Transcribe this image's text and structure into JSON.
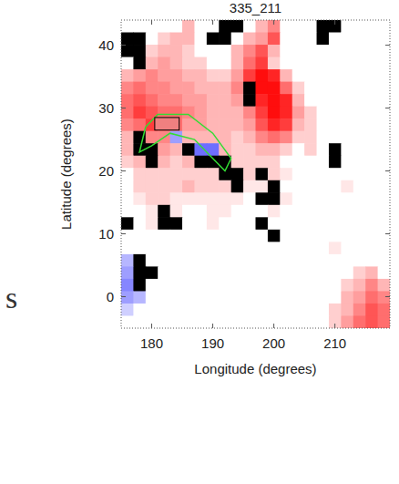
{
  "chart_data": {
    "type": "heatmap",
    "title": "335_211",
    "x_label": "Longitude (degrees)",
    "y_label": "Latitude (degrees)",
    "xlim": [
      175,
      219
    ],
    "ylim": [
      -5,
      44
    ],
    "xticks": [
      180,
      190,
      200,
      210
    ],
    "yticks": [
      0,
      10,
      20,
      30,
      40
    ],
    "zlim": [
      -1,
      1
    ],
    "values": [
      [
        0,
        0,
        0,
        0,
        0,
        0.3,
        0,
        0,
        null,
        null,
        0,
        0.3,
        0.5,
        0,
        0,
        0,
        null,
        null,
        0,
        0,
        0,
        0
      ],
      [
        null,
        null,
        0,
        0.2,
        0.3,
        0.3,
        0,
        null,
        null,
        0,
        0.3,
        0.4,
        0.7,
        0,
        0,
        0,
        null,
        0,
        0,
        0,
        0,
        0
      ],
      [
        null,
        null,
        0.2,
        0.3,
        0.3,
        0.2,
        0,
        0,
        0,
        0.3,
        0.5,
        0.7,
        0.3,
        0,
        0,
        0,
        0,
        0,
        0,
        0,
        0,
        0
      ],
      [
        0,
        null,
        0.3,
        0.4,
        0.3,
        0.2,
        0.2,
        0,
        0,
        0.3,
        0.6,
        0.8,
        0.2,
        0,
        0,
        0,
        0,
        0,
        0,
        0,
        0,
        0
      ],
      [
        0.3,
        0.4,
        0.5,
        0.4,
        0.4,
        0.3,
        0.3,
        0.2,
        0.2,
        0.4,
        0.8,
        1,
        0.9,
        0.3,
        0,
        0,
        0,
        0,
        0,
        0,
        0,
        0
      ],
      [
        0.5,
        0.6,
        0.5,
        0.5,
        0.4,
        0.4,
        0.3,
        0.3,
        0.3,
        0.5,
        null,
        1,
        1,
        0.6,
        0.2,
        0,
        0,
        0,
        0,
        0,
        0,
        0
      ],
      [
        0.6,
        0.7,
        0.6,
        0.5,
        0.5,
        0.4,
        0.4,
        0.3,
        0.3,
        0.4,
        null,
        0.9,
        1,
        0.9,
        0.3,
        0,
        0,
        0,
        0,
        0,
        0,
        0
      ],
      [
        0.6,
        0.8,
        0.7,
        0.6,
        0.6,
        0.5,
        0.4,
        0.3,
        0.3,
        0.3,
        0.5,
        0.8,
        1,
        0.9,
        0.4,
        0.2,
        0,
        0,
        0,
        0,
        0,
        0
      ],
      [
        0.5,
        0.6,
        0.8,
        0.7,
        0.6,
        0.4,
        0.4,
        0.3,
        0.3,
        0.3,
        0.4,
        0.7,
        0.9,
        0.8,
        0.3,
        0.2,
        0,
        0,
        0,
        0,
        0,
        0
      ],
      [
        0.3,
        null,
        0.5,
        0.5,
        -0.4,
        0.3,
        0.3,
        0.3,
        0.3,
        0.2,
        0.3,
        0.5,
        0.6,
        0.5,
        0.2,
        0.2,
        0,
        0,
        0,
        0,
        0,
        0
      ],
      [
        0.3,
        null,
        null,
        0.4,
        0.3,
        null,
        -0.6,
        -0.6,
        0.3,
        0.2,
        0.2,
        0.3,
        0.3,
        0.2,
        0,
        0.2,
        0,
        null,
        0,
        0,
        0,
        0
      ],
      [
        0.2,
        0.3,
        null,
        0.3,
        0.2,
        0.3,
        null,
        null,
        null,
        0.2,
        0.2,
        0.2,
        0.2,
        0,
        0,
        0,
        0,
        null,
        0,
        0,
        0,
        0
      ],
      [
        0,
        0.2,
        0.2,
        0.2,
        0.2,
        0.2,
        0.2,
        0.2,
        null,
        null,
        0.2,
        null,
        0.2,
        0.1,
        0,
        0,
        0,
        0,
        0,
        0,
        0,
        0
      ],
      [
        0,
        0.2,
        0.2,
        0.2,
        0.2,
        0.3,
        0.2,
        0.2,
        0.2,
        null,
        0.1,
        0.1,
        null,
        0,
        0,
        0,
        0,
        0,
        0.1,
        0,
        0,
        0
      ],
      [
        0,
        0.1,
        0.2,
        0.2,
        0.1,
        0.1,
        0.1,
        0.1,
        0.1,
        0.1,
        0,
        null,
        null,
        0.1,
        0,
        0,
        0,
        0,
        0,
        0,
        0,
        0
      ],
      [
        0,
        0,
        0.1,
        null,
        0.1,
        0,
        0,
        0.1,
        0.1,
        0,
        0,
        0,
        0.1,
        0,
        0,
        0,
        0,
        0,
        0,
        0,
        0,
        0
      ],
      [
        null,
        0,
        0.1,
        null,
        null,
        0,
        0,
        0.1,
        0,
        0,
        0,
        null,
        0,
        0,
        0,
        0,
        0,
        0,
        0,
        0,
        0,
        0
      ],
      [
        0,
        0,
        0,
        0,
        0,
        0,
        0,
        0,
        0,
        0,
        0,
        0,
        null,
        0,
        0,
        0,
        0,
        0,
        0,
        0,
        0,
        0
      ],
      [
        0,
        0,
        0,
        0,
        0,
        0,
        0,
        0,
        0,
        0,
        0,
        0,
        0,
        0,
        0,
        0,
        0,
        0.1,
        0,
        0,
        0,
        0
      ],
      [
        -0.3,
        null,
        0,
        0,
        0,
        0,
        0,
        0,
        0,
        0,
        0,
        0,
        0,
        0,
        0,
        0,
        0,
        0,
        0,
        0,
        0,
        0
      ],
      [
        -0.4,
        null,
        null,
        0,
        0,
        0,
        0,
        0,
        0,
        0,
        0,
        0,
        0,
        0,
        0,
        0,
        0,
        0,
        0,
        0.2,
        0.3,
        0
      ],
      [
        -0.5,
        null,
        0,
        0,
        0,
        0,
        0,
        0,
        0,
        0,
        0,
        0,
        0,
        0,
        0,
        0,
        0,
        0,
        0.2,
        0.3,
        0.5,
        0.3
      ],
      [
        -0.4,
        -0.3,
        0,
        0,
        0,
        0,
        0,
        0,
        0,
        0,
        0,
        0,
        0,
        0,
        0,
        0,
        0,
        0,
        0.3,
        0.4,
        0.6,
        0.5
      ],
      [
        -0.2,
        0,
        0,
        0,
        0,
        0,
        0,
        0,
        0,
        0,
        0,
        0,
        0,
        0,
        0,
        0,
        0,
        0.2,
        0.3,
        0.5,
        0.7,
        0.6
      ],
      [
        0,
        0,
        0,
        0,
        0,
        0,
        0,
        0,
        0,
        0,
        0,
        0,
        0,
        0,
        0,
        0,
        0,
        0.2,
        0.4,
        0.6,
        0.7,
        0.6
      ]
    ],
    "contour": {
      "x": [
        179,
        181,
        186,
        190,
        193,
        192,
        190,
        187,
        183,
        180,
        178,
        179
      ],
      "y": [
        27,
        29,
        29,
        26,
        22,
        20,
        22,
        25,
        26,
        24,
        23,
        27
      ]
    },
    "box": {
      "x": [
        180.5,
        184.5
      ],
      "y": [
        26.5,
        28.5
      ]
    },
    "annotations": [
      "s"
    ]
  }
}
